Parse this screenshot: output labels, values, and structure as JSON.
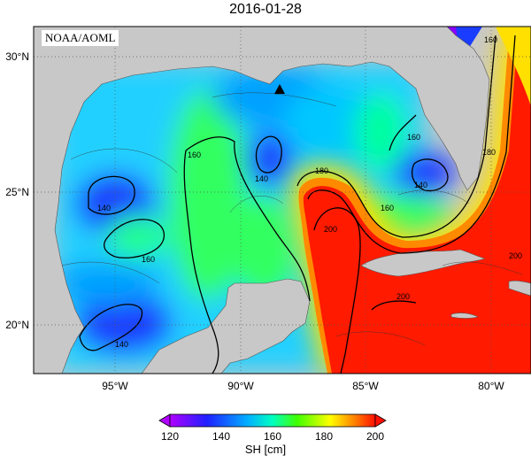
{
  "title": "2016-01-28",
  "credit": "NOAA/AOML",
  "map": {
    "lat_ticks": [
      "30°N",
      "25°N",
      "20°N"
    ],
    "lon_ticks": [
      "95°W",
      "90°W",
      "85°W",
      "80°W"
    ],
    "land_color": "#c8c8c8",
    "grid_style": "dotted",
    "marker": "triangle",
    "contour_labels": [
      "160",
      "140",
      "160",
      "180",
      "140",
      "160",
      "180",
      "160",
      "200",
      "140",
      "160",
      "200",
      "200",
      "140"
    ]
  },
  "colorbar": {
    "ticks": [
      "120",
      "140",
      "160",
      "180",
      "200"
    ],
    "units": "SH [cm]",
    "colors": [
      "#ff00ff",
      "#0000ff",
      "#00ffff",
      "#00ff00",
      "#ffff00",
      "#ff8000",
      "#ff0000"
    ]
  }
}
